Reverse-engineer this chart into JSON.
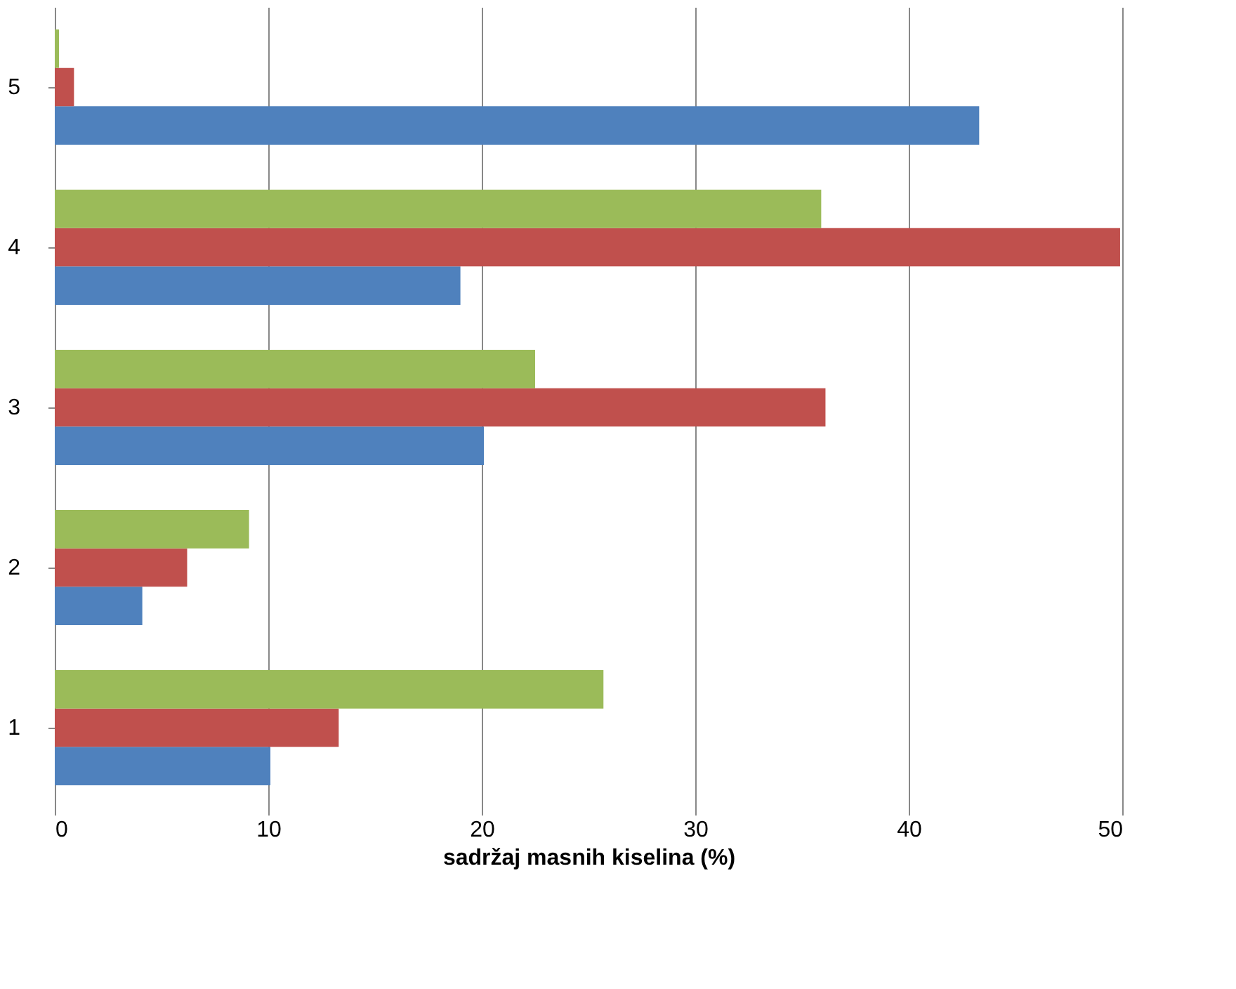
{
  "chart_data": {
    "type": "bar",
    "orientation": "horizontal",
    "categories": [
      "5",
      "4",
      "3",
      "2",
      "1"
    ],
    "series": [
      {
        "color": "#4f81bd",
        "values": [
          43.3,
          19.0,
          20.1,
          4.1,
          10.1
        ]
      },
      {
        "color": "#c0504d",
        "values": [
          0.9,
          49.9,
          36.1,
          6.2,
          13.3
        ]
      },
      {
        "color": "#9bbb59",
        "values": [
          0.2,
          35.9,
          22.5,
          9.1,
          25.7
        ]
      }
    ],
    "xlabel": "sadržaj masnih kiselina (%)",
    "xlim": [
      0,
      50
    ],
    "xticks": [
      0,
      10,
      20,
      30,
      40,
      50
    ],
    "grid": "x"
  }
}
